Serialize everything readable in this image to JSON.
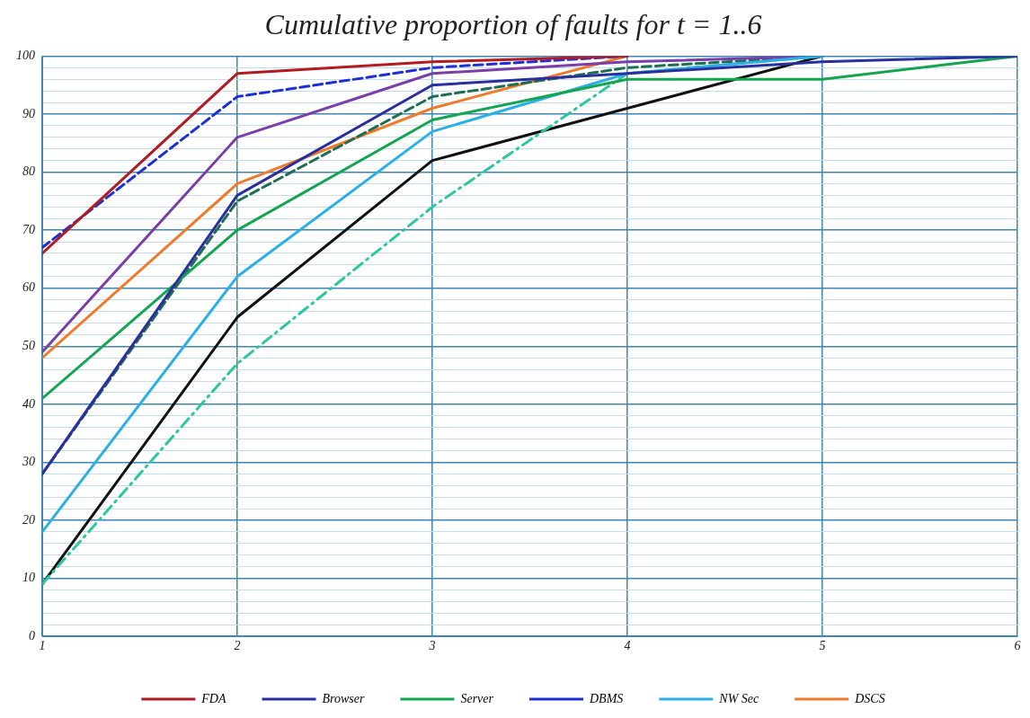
{
  "chart_data": {
    "type": "line",
    "title": "Cumulative proportion of faults for t = 1..6",
    "x": [
      1,
      2,
      3,
      4,
      5,
      6
    ],
    "xlim": [
      1,
      6
    ],
    "xticks": [
      1,
      2,
      3,
      4,
      5,
      6
    ],
    "ylim": [
      0,
      100
    ],
    "yticks": [
      0,
      {
        "value": 2,
        "label": null
      },
      {
        "value": 4,
        "label": null
      },
      {
        "value": 6,
        "label": null
      },
      {
        "value": 8,
        "label": null
      },
      10,
      {
        "value": 12,
        "label": null
      },
      {
        "value": 14,
        "label": null
      },
      {
        "value": 16,
        "label": null
      },
      {
        "value": 18,
        "label": null
      },
      20,
      {
        "value": 22,
        "label": null
      },
      {
        "value": 24,
        "label": null
      },
      {
        "value": 26,
        "label": null
      },
      {
        "value": 28,
        "label": null
      },
      30,
      {
        "value": 32,
        "label": null
      },
      {
        "value": 34,
        "label": null
      },
      {
        "value": 36,
        "label": null
      },
      {
        "value": 38,
        "label": null
      },
      40,
      {
        "value": 42,
        "label": null
      },
      {
        "value": 44,
        "label": null
      },
      {
        "value": 46,
        "label": null
      },
      {
        "value": 48,
        "label": null
      },
      50,
      {
        "value": 52,
        "label": null
      },
      {
        "value": 54,
        "label": null
      },
      {
        "value": 56,
        "label": null
      },
      {
        "value": 58,
        "label": null
      },
      60,
      {
        "value": 62,
        "label": null
      },
      {
        "value": 64,
        "label": null
      },
      {
        "value": 66,
        "label": null
      },
      {
        "value": 68,
        "label": null
      },
      70,
      {
        "value": 72,
        "label": null
      },
      {
        "value": 74,
        "label": null
      },
      {
        "value": 76,
        "label": null
      },
      {
        "value": 78,
        "label": null
      },
      80,
      {
        "value": 82,
        "label": null
      },
      {
        "value": 84,
        "label": null
      },
      {
        "value": 86,
        "label": null
      },
      {
        "value": 88,
        "label": null
      },
      90,
      {
        "value": 92,
        "label": null
      },
      {
        "value": 94,
        "label": null
      },
      {
        "value": 96,
        "label": null
      },
      {
        "value": 98,
        "label": null
      },
      100
    ],
    "grid": true,
    "legend": "bottom",
    "marker": "none",
    "series": [
      {
        "name": "FDA",
        "color": "#b01c22",
        "line_style": "solid",
        "values": [
          66,
          97,
          99,
          100,
          null,
          null
        ]
      },
      {
        "name": "Browser",
        "color": "#2b2f9e",
        "line_style": "solid",
        "values": [
          28,
          76,
          95,
          97,
          99,
          100
        ]
      },
      {
        "name": "Server",
        "color": "#13a550",
        "line_style": "solid",
        "values": [
          41,
          70,
          89,
          96,
          96,
          100
        ]
      },
      {
        "name": "DBMS",
        "color": "#1f2fd6",
        "line_style": "dashed",
        "values": [
          67,
          93,
          98,
          100,
          null,
          null
        ]
      },
      {
        "name": "NW Sec",
        "color": "#2bb0e6",
        "line_style": "solid",
        "values": [
          18,
          62,
          87,
          97,
          100,
          null
        ]
      },
      {
        "color": "#7a3ea8",
        "line_style": "solid",
        "values": [
          49,
          86,
          97,
          99,
          100,
          null
        ]
      },
      {
        "color": "#1e6e52",
        "line_style": "dashed",
        "values": [
          28,
          75,
          93,
          98,
          100,
          null
        ]
      },
      {
        "color": "#2cc6a0",
        "line_style": "dashdot",
        "values": [
          9,
          47,
          74,
          97,
          100,
          null
        ]
      },
      {
        "name": "DSCS",
        "color": "#f07a2a",
        "line_style": "solid",
        "values": [
          48,
          78,
          91,
          100,
          null,
          null
        ]
      },
      {
        "color": "#111111",
        "line_style": "solid",
        "values": [
          9,
          55,
          82,
          91,
          100,
          null
        ]
      }
    ]
  }
}
